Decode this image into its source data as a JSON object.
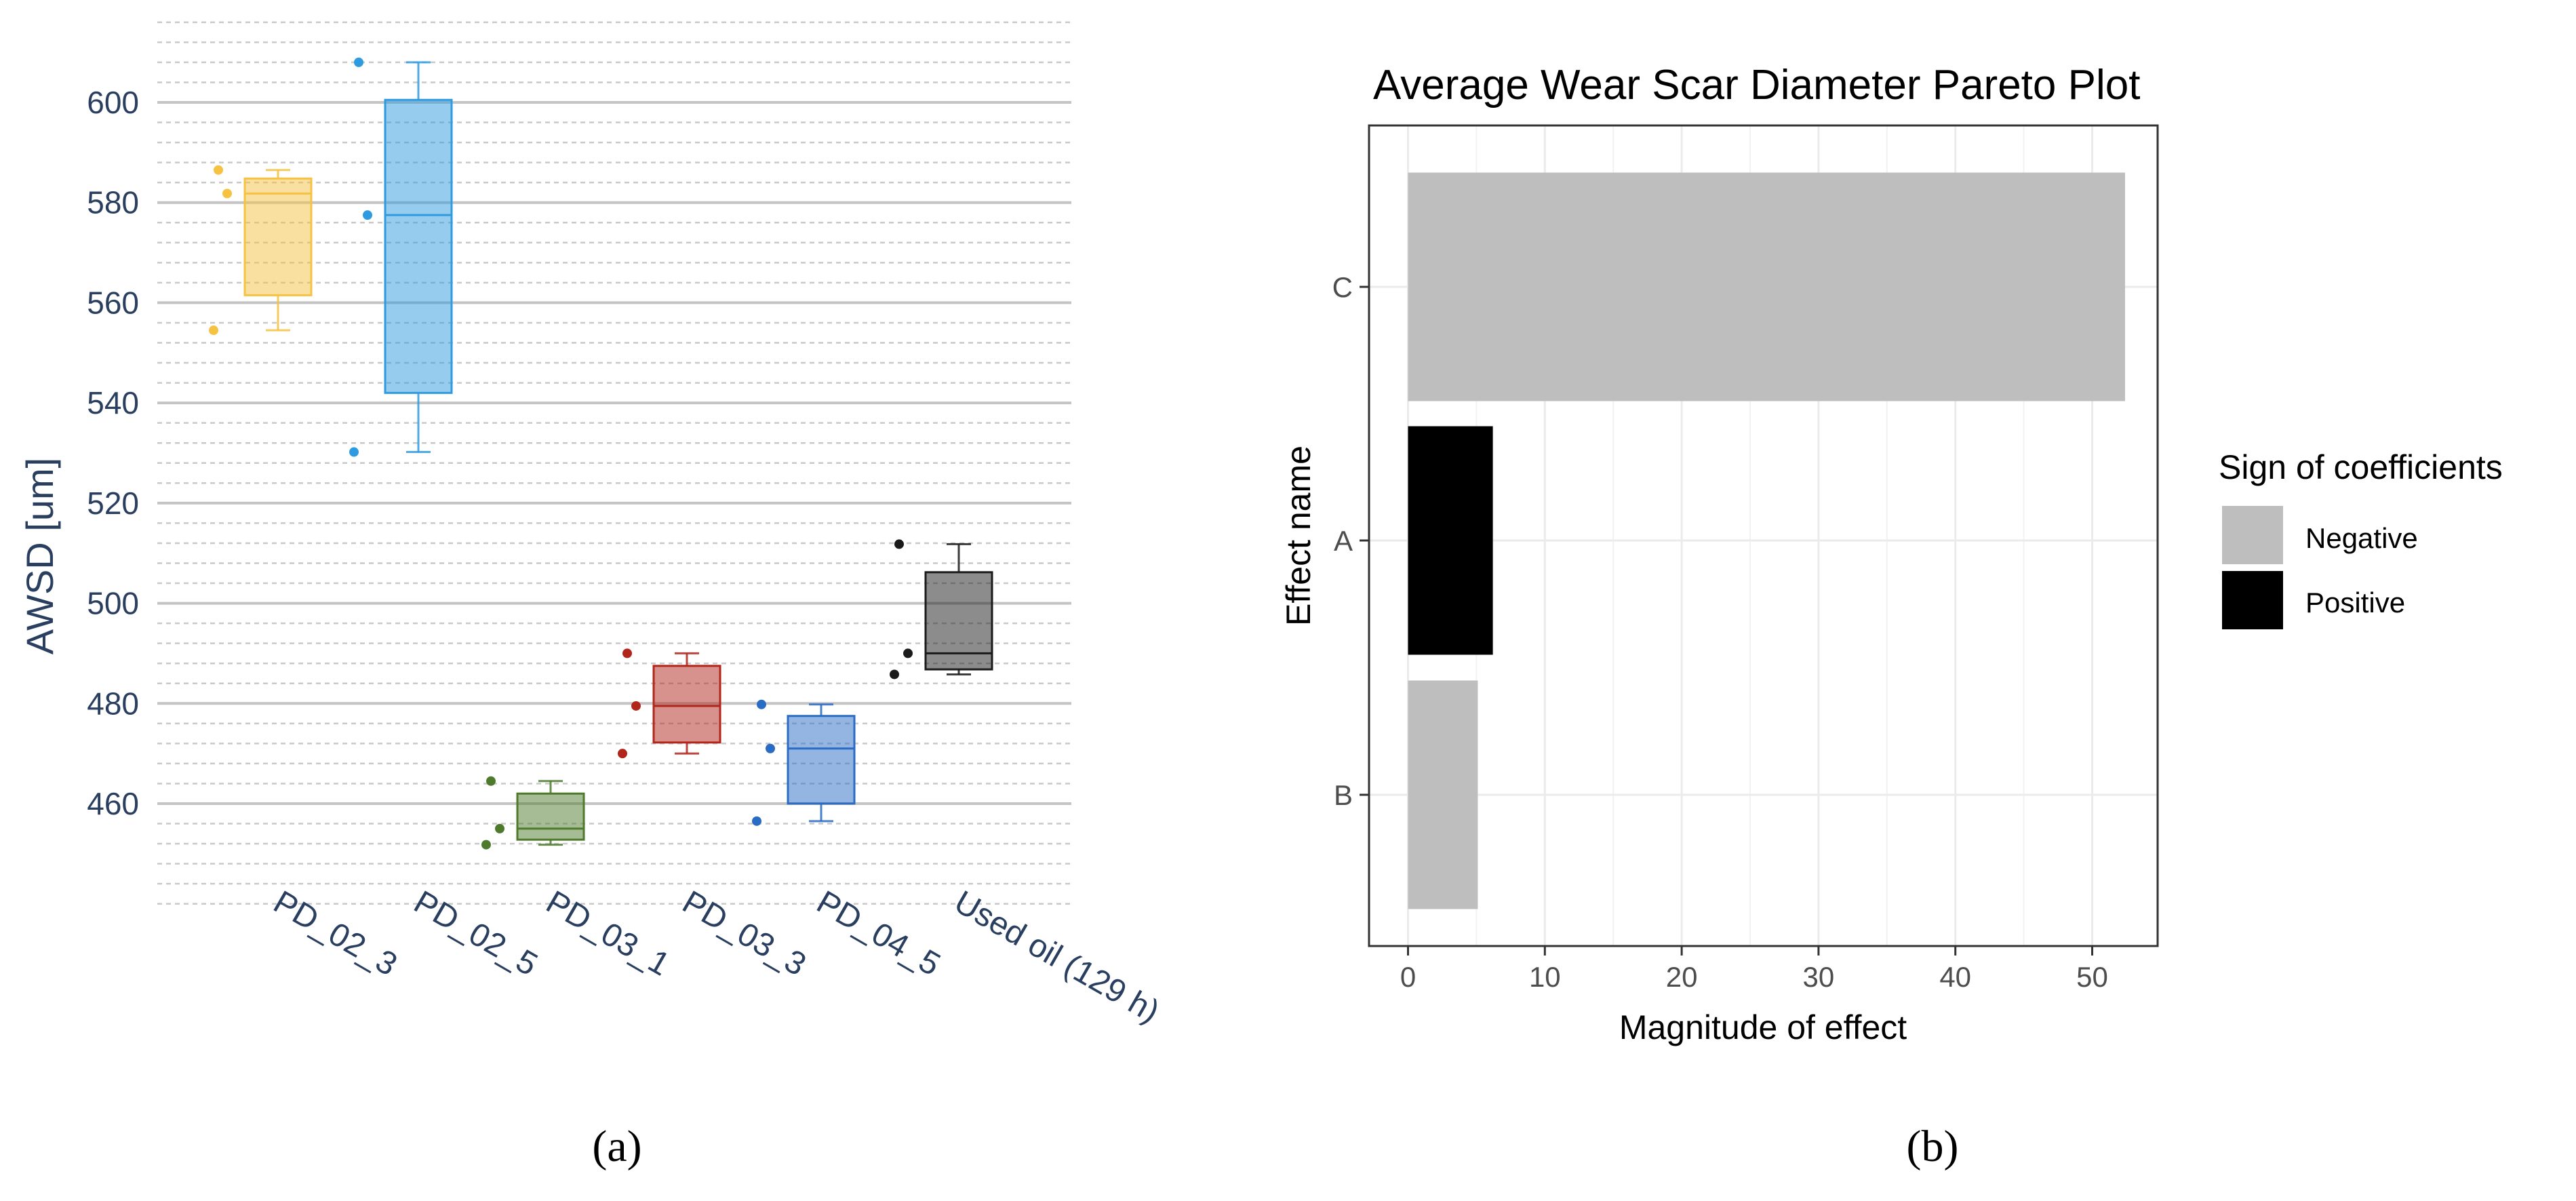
{
  "chart_data": [
    {
      "type": "box",
      "panel_label": "(a)",
      "title": "",
      "xlabel": "",
      "ylabel": "AWSD [um]",
      "ylim": [
        440,
        616
      ],
      "y_ticks": [
        460,
        480,
        500,
        520,
        540,
        560,
        580,
        600
      ],
      "tick_labels": [
        "460",
        "480",
        "500",
        "520",
        "540",
        "560",
        "580",
        "600"
      ],
      "minor_gridlines": "dashed",
      "categories": [
        "PD_02_3",
        "PD_02_5",
        "PD_03_1",
        "PD_03_3",
        "PD_04_5",
        "Used oil (129 h)"
      ],
      "series": [
        {
          "name": "PD_02_3",
          "color": "#F5C242",
          "min": 554.5,
          "q1": 561.5,
          "median": 581.8,
          "q3": 584.8,
          "max": 586.5,
          "points": [
            554.5,
            581.8,
            586.5
          ]
        },
        {
          "name": "PD_02_5",
          "color": "#2E9BE0",
          "min": 530.2,
          "q1": 542.0,
          "median": 577.5,
          "q3": 600.5,
          "max": 608.0,
          "points": [
            530.2,
            577.5,
            608.0
          ]
        },
        {
          "name": "PD_03_1",
          "color": "#4E7A2B",
          "min": 451.8,
          "q1": 452.8,
          "median": 455.0,
          "q3": 462.0,
          "max": 464.5,
          "points": [
            451.8,
            455.0,
            464.5
          ]
        },
        {
          "name": "PD_03_3",
          "color": "#B1251B",
          "min": 470.0,
          "q1": 472.2,
          "median": 479.5,
          "q3": 487.5,
          "max": 490.0,
          "points": [
            470.0,
            479.5,
            490.0
          ]
        },
        {
          "name": "PD_04_5",
          "color": "#2A6BC4",
          "min": 456.5,
          "q1": 460.0,
          "median": 471.0,
          "q3": 477.5,
          "max": 479.8,
          "points": [
            456.5,
            471.0,
            479.8
          ]
        },
        {
          "name": "Used oil (129 h)",
          "color": "#1a1a1a",
          "min": 485.8,
          "q1": 486.8,
          "median": 490.0,
          "q3": 506.2,
          "max": 511.8,
          "points": [
            485.8,
            490.0,
            511.8
          ]
        }
      ]
    },
    {
      "type": "bar",
      "orientation": "horizontal",
      "panel_label": "(b)",
      "title": "Average Wear Scar Diameter Pareto Plot",
      "xlabel": "Magnitude of effect",
      "ylabel": "Effect name",
      "xlim": [
        -2.5,
        55
      ],
      "x_ticks": [
        0,
        10,
        20,
        30,
        40,
        50
      ],
      "x_tick_labels": [
        "0",
        "10",
        "20",
        "30",
        "40",
        "50"
      ],
      "categories": [
        "C",
        "A",
        "B"
      ],
      "values": [
        52.4,
        6.2,
        5.1
      ],
      "signs": [
        "Negative",
        "Positive",
        "Negative"
      ],
      "legend": {
        "title": "Sign of coefficients",
        "position": "right",
        "entries": [
          {
            "label": "Negative",
            "color": "#BEBEBE"
          },
          {
            "label": "Positive",
            "color": "#000000"
          }
        ]
      }
    }
  ]
}
